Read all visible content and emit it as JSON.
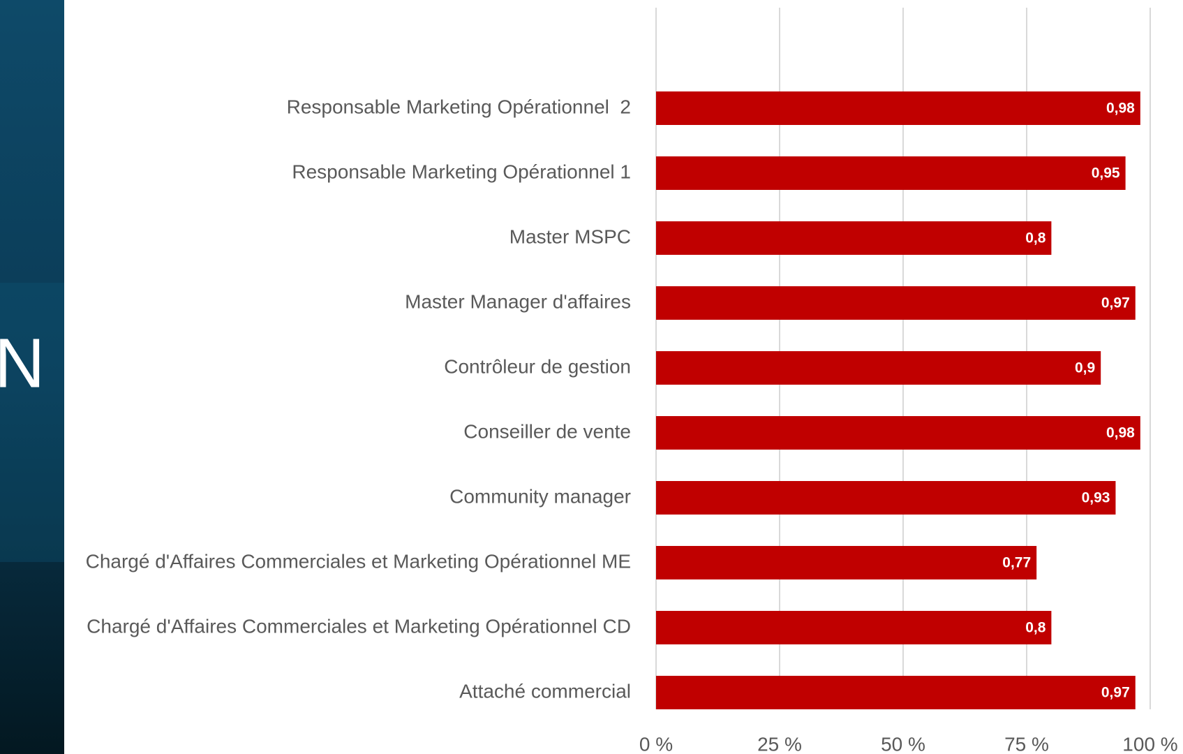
{
  "background": {
    "title_fragment": "N"
  },
  "chart_data": {
    "type": "hbar",
    "categories": [
      "Responsable Marketing Opérationnel  2",
      "Responsable Marketing Opérationnel 1",
      "Master MSPC",
      "Master Manager d'affaires",
      "Contrôleur de gestion",
      "Conseiller de vente",
      "Community manager",
      "Chargé d'Affaires Commerciales et Marketing Opérationnel ME",
      "Chargé d'Affaires Commerciales et Marketing Opérationnel CD",
      "Attaché commercial"
    ],
    "values": [
      98,
      95,
      80,
      97,
      90,
      98,
      93,
      77,
      80,
      97
    ],
    "value_labels": [
      "0,98",
      "0,95",
      "0,8",
      "0,97",
      "0,9",
      "0,98",
      "0,93",
      "0,77",
      "0,8",
      "0,97"
    ],
    "color": "#c00000",
    "xlim": [
      0,
      100
    ],
    "xticks": [
      {
        "value": 0,
        "label": "0 %"
      },
      {
        "value": 25,
        "label": "25 %"
      },
      {
        "value": 50,
        "label": "50 %"
      },
      {
        "value": 75,
        "label": "75 %"
      },
      {
        "value": 100,
        "label": "100 %"
      }
    ],
    "grid": true
  }
}
